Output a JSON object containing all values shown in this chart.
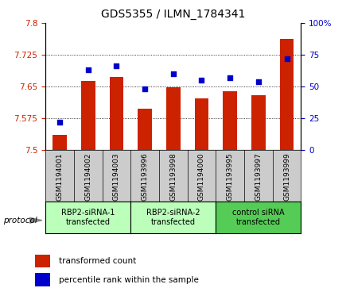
{
  "title": "GDS5355 / ILMN_1784341",
  "samples": [
    "GSM1194001",
    "GSM1194002",
    "GSM1194003",
    "GSM1193996",
    "GSM1193998",
    "GSM1194000",
    "GSM1193995",
    "GSM1193997",
    "GSM1193999"
  ],
  "red_values": [
    7.535,
    7.663,
    7.672,
    7.598,
    7.648,
    7.622,
    7.638,
    7.63,
    7.762
  ],
  "blue_values": [
    22,
    63,
    66,
    48,
    60,
    55,
    57,
    54,
    72
  ],
  "ylim_left": [
    7.5,
    7.8
  ],
  "ylim_right": [
    0,
    100
  ],
  "yticks_left": [
    7.5,
    7.575,
    7.65,
    7.725,
    7.8
  ],
  "yticks_right": [
    0,
    25,
    50,
    75,
    100
  ],
  "groups": [
    {
      "label": "RBP2-siRNA-1\ntransfected",
      "indices": [
        0,
        1,
        2
      ],
      "color": "#bbffbb"
    },
    {
      "label": "RBP2-siRNA-2\ntransfected",
      "indices": [
        3,
        4,
        5
      ],
      "color": "#bbffbb"
    },
    {
      "label": "control siRNA\ntransfected",
      "indices": [
        6,
        7,
        8
      ],
      "color": "#55cc55"
    }
  ],
  "bar_color": "#cc2200",
  "dot_color": "#0000cc",
  "bar_width": 0.5,
  "protocol_label": "protocol",
  "legend_red": "transformed count",
  "legend_blue": "percentile rank within the sample",
  "tick_area_color": "#cccccc",
  "background_color": "#ffffff"
}
